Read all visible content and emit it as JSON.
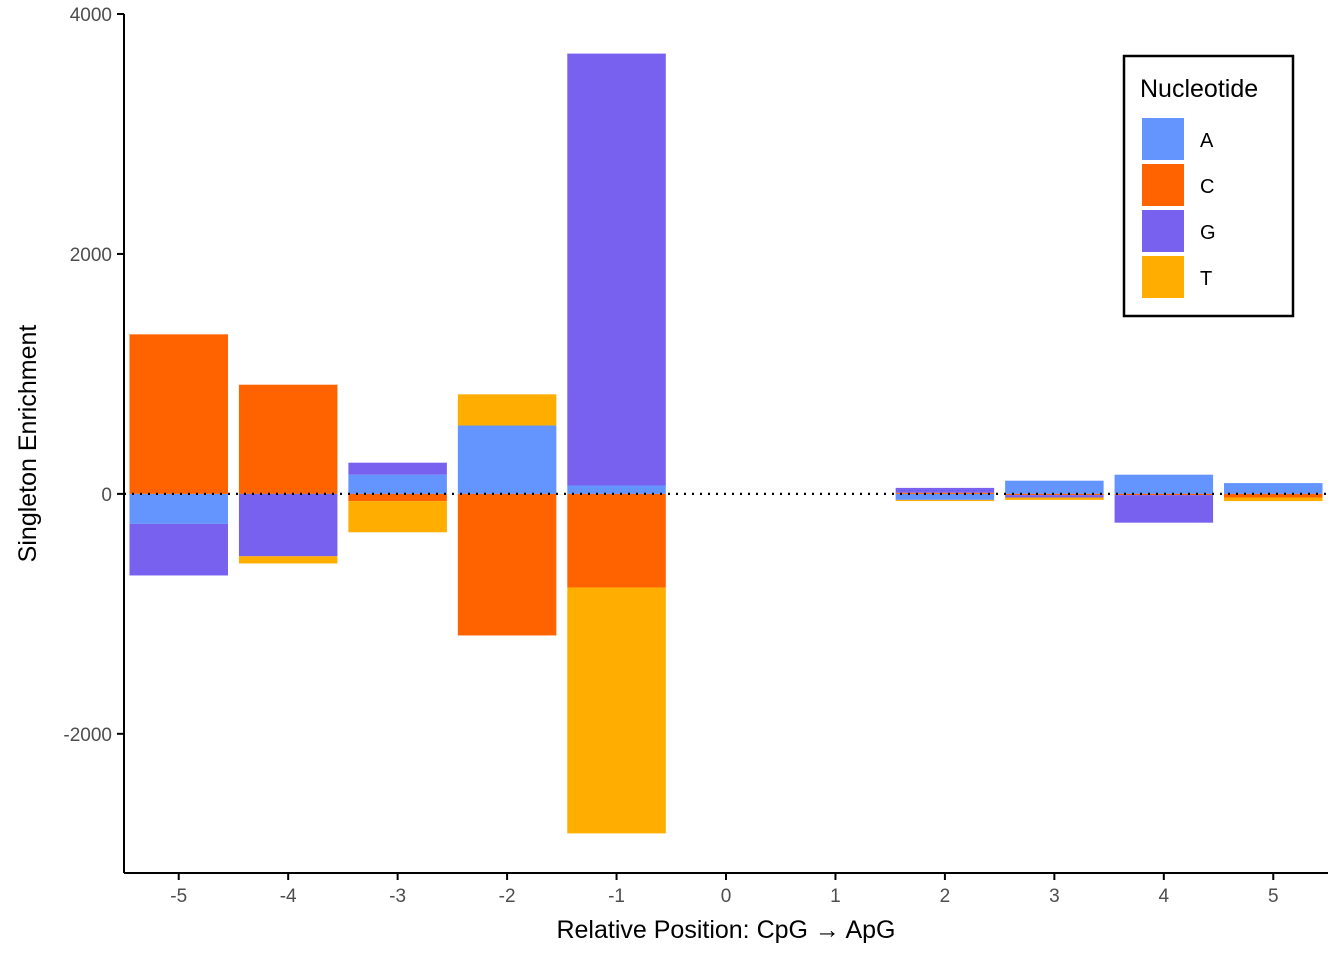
{
  "chart_data": {
    "type": "bar",
    "stacked": true,
    "diverging": true,
    "xlabel": "Relative Position: CpG → ApG",
    "ylabel": "Singleton Enrichment",
    "categories": [
      "-5",
      "-4",
      "-3",
      "-2",
      "-1",
      "0",
      "1",
      "2",
      "3",
      "4",
      "5"
    ],
    "ylim": [
      -3160,
      4000
    ],
    "yticks": [
      -2000,
      0,
      2000,
      4000
    ],
    "grid": false,
    "reference_line": {
      "y": 0,
      "style": "dotted"
    },
    "legend": {
      "title": "Nucleotide",
      "placement": "top-right",
      "entries": [
        "A",
        "C",
        "G",
        "T"
      ]
    },
    "colors": {
      "A": "#6495ff",
      "C": "#ff6300",
      "G": "#7961f0",
      "T": "#ffae00"
    },
    "series": [
      {
        "name": "A",
        "values": [
          -250,
          0,
          160,
          570,
          70,
          0,
          0,
          -50,
          110,
          160,
          90
        ]
      },
      {
        "name": "C",
        "values": [
          1330,
          910,
          -60,
          -1180,
          -780,
          0,
          0,
          10,
          -10,
          -10,
          -30
        ]
      },
      {
        "name": "G",
        "values": [
          -430,
          -520,
          100,
          0,
          3600,
          0,
          0,
          40,
          -20,
          -230,
          0
        ]
      },
      {
        "name": "T",
        "values": [
          0,
          -60,
          -260,
          260,
          -2050,
          0,
          0,
          -10,
          -20,
          0,
          -30
        ]
      }
    ]
  }
}
